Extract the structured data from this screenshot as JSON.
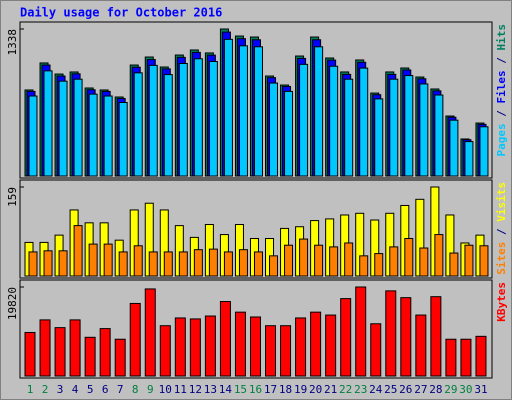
{
  "chart_data": [
    {
      "type": "bar",
      "title": "Daily usage for October 2016",
      "series": [
        {
          "name": "Hits",
          "color": "#008060",
          "values": [
            783,
            1029,
            928,
            947,
            801,
            783,
            719,
            1010,
            1083,
            992,
            1101,
            1147,
            1120,
            1338,
            1274,
            1265,
            910,
            828,
            1092,
            1265,
            1074,
            947,
            1056,
            755,
            947,
            983,
            901,
            792,
            546,
            337,
            482
          ]
        },
        {
          "name": "Files",
          "color": "#0000ff",
          "values": [
            770,
            1010,
            910,
            930,
            785,
            770,
            705,
            990,
            1060,
            975,
            1080,
            1125,
            1100,
            1310,
            1250,
            1240,
            895,
            815,
            1070,
            1240,
            1055,
            925,
            1035,
            740,
            925,
            965,
            885,
            775,
            535,
            330,
            470
          ]
        },
        {
          "name": "Pages",
          "color": "#00c8ff",
          "values": [
            728,
            957,
            863,
            881,
            745,
            728,
            669,
            939,
            1007,
            923,
            1024,
            1067,
            1042,
            1244,
            1185,
            1176,
            846,
            770,
            1016,
            1176,
            999,
            881,
            982,
            702,
            881,
            914,
            838,
            737,
            508,
            313,
            448
          ]
        }
      ],
      "ylim": [
        0,
        1338
      ],
      "yticks": [
        1338
      ]
    },
    {
      "type": "bar",
      "series": [
        {
          "name": "Visits",
          "color": "#ffff00",
          "values": [
            60,
            60,
            73,
            118,
            95,
            95,
            64,
            118,
            130,
            118,
            90,
            69,
            92,
            74,
            92,
            67,
            67,
            85,
            88,
            99,
            102,
            109,
            112,
            100,
            112,
            126,
            137,
            159,
            109,
            59,
            73
          ]
        },
        {
          "name": "Sites",
          "color": "#ff8000",
          "values": [
            43,
            45,
            45,
            90,
            57,
            57,
            43,
            54,
            43,
            43,
            43,
            47,
            48,
            43,
            47,
            43,
            36,
            55,
            66,
            55,
            52,
            59,
            36,
            40,
            52,
            67,
            50,
            74,
            41,
            55,
            54
          ]
        }
      ],
      "ylim": [
        0,
        159
      ],
      "yticks": [
        159
      ]
    },
    {
      "type": "bar",
      "series": [
        {
          "name": "KBytes",
          "color": "#ff0000",
          "values": [
            9695,
            12495,
            10772,
            12495,
            8617,
            10556,
            8187,
            16158,
            19389,
            11202,
            12926,
            12711,
            13357,
            16589,
            14219,
            13142,
            11202,
            11202,
            12926,
            14219,
            13572,
            17235,
            19820,
            11633,
            18958,
            17450,
            13572,
            17666,
            8187,
            8187,
            8833
          ]
        }
      ],
      "ylim": [
        0,
        19820
      ],
      "yticks": [
        19820
      ],
      "categories": [
        "1",
        "2",
        "3",
        "4",
        "5",
        "6",
        "7",
        "8",
        "9",
        "10",
        "11",
        "12",
        "13",
        "14",
        "15",
        "16",
        "17",
        "18",
        "19",
        "20",
        "21",
        "22",
        "23",
        "24",
        "25",
        "26",
        "27",
        "28",
        "29",
        "30",
        "31"
      ],
      "label_colors": [
        "#008040",
        "#008040",
        "#000080",
        "#000080",
        "#000080",
        "#000080",
        "#000080",
        "#008040",
        "#008040",
        "#000080",
        "#000080",
        "#000080",
        "#000080",
        "#000080",
        "#008040",
        "#008040",
        "#000080",
        "#000080",
        "#000080",
        "#000080",
        "#000080",
        "#008040",
        "#008040",
        "#000080",
        "#000080",
        "#000080",
        "#000080",
        "#000080",
        "#008040",
        "#008040",
        "#000080"
      ]
    }
  ]
}
